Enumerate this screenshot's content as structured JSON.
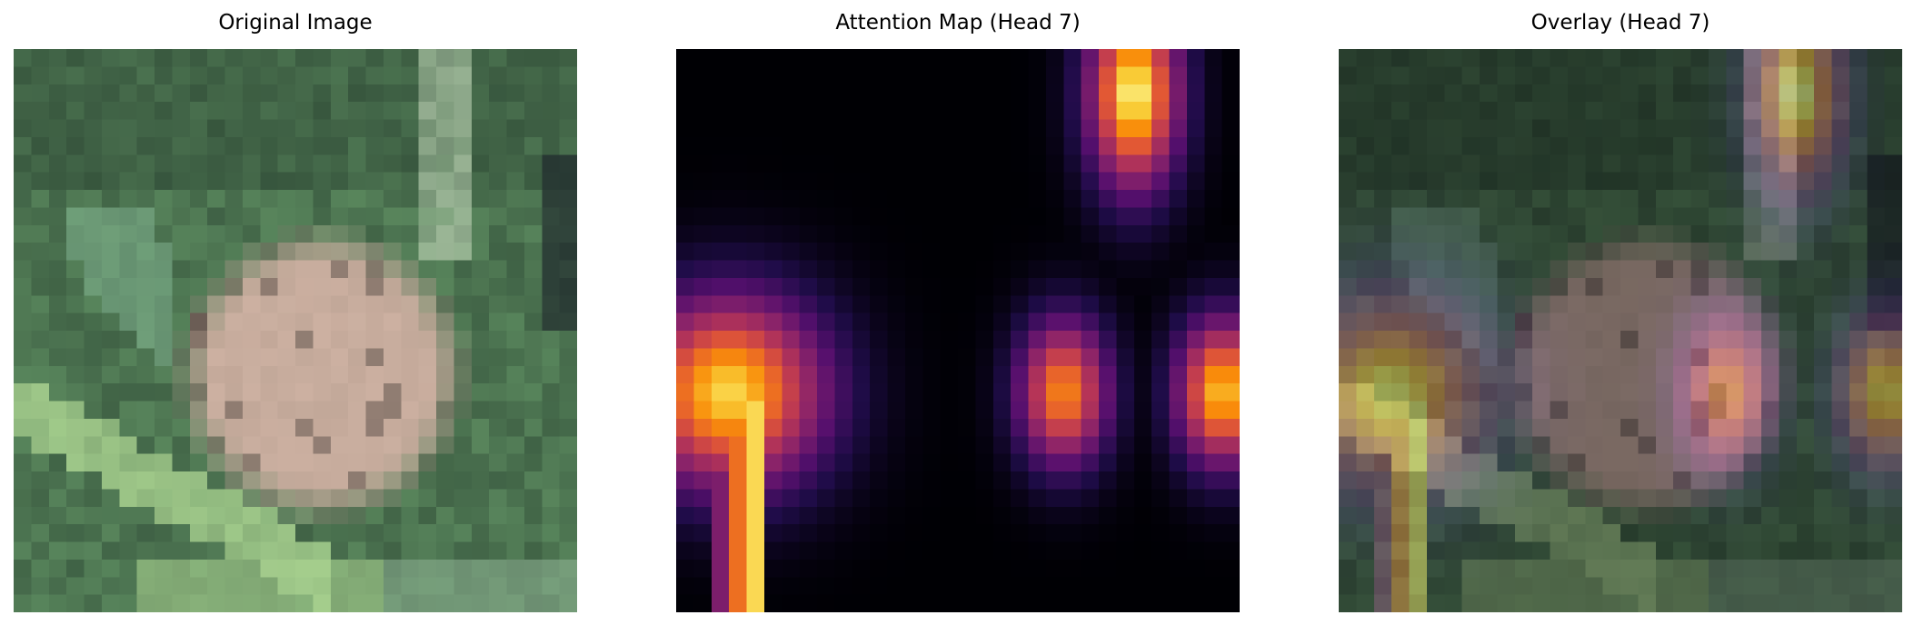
{
  "figure": {
    "panels": [
      {
        "title": "Original Image"
      },
      {
        "title": "Attention Map (Head 7)"
      },
      {
        "title": "Overlay (Head 7)"
      }
    ]
  },
  "colormap": "inferno",
  "overlay_alpha": 0.4,
  "image_resolution": [
    32,
    32
  ],
  "attention_grid": {
    "rows": 32,
    "cols": 32,
    "blobs": [
      {
        "center": [
          2,
          25.5
        ],
        "spread": [
          5.5,
          2.6
        ],
        "peak": 1.0
      },
      {
        "center": [
          19,
          2.5
        ],
        "spread": [
          5.5,
          5.5
        ],
        "peak": 0.95
      },
      {
        "center": [
          19,
          21.5
        ],
        "spread": [
          4.2,
          2.6
        ],
        "peak": 0.82
      },
      {
        "center": [
          19,
          30.5
        ],
        "spread": [
          4.2,
          2.6
        ],
        "peak": 0.92
      }
    ]
  },
  "photo_palette": {
    "dark_green": "#2f4a36",
    "foliage_green": "#5f8f62",
    "light_green": "#a8d18f",
    "frog_beige": "#c2a899",
    "frog_shadow": "#6b5d55"
  }
}
